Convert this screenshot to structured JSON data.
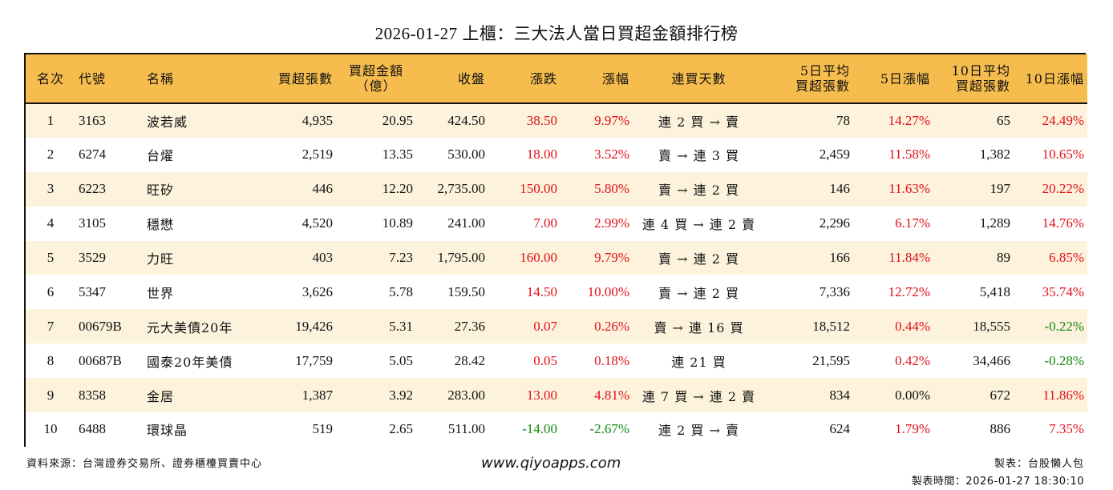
{
  "title": "2026-01-27 上櫃：三大法人當日買超金額排行榜",
  "colors": {
    "header_bg": "#f6bd4e",
    "row_alt_bg": "#fdf2dc",
    "up": "#e0101a",
    "down": "#128a12"
  },
  "columns": [
    {
      "key": "rank",
      "label": "名次"
    },
    {
      "key": "code",
      "label": "代號"
    },
    {
      "key": "name",
      "label": "名稱"
    },
    {
      "key": "net_lots",
      "label": "買超張數"
    },
    {
      "key": "net_amount",
      "label_line1": "買超金額",
      "label_line2": "（億）"
    },
    {
      "key": "close",
      "label": "收盤"
    },
    {
      "key": "change",
      "label": "漲跌"
    },
    {
      "key": "pct",
      "label": "漲幅"
    },
    {
      "key": "streak",
      "label": "連買天數"
    },
    {
      "key": "avg5",
      "label_line1": "5日平均",
      "label_line2": "買超張數"
    },
    {
      "key": "pct5",
      "label": "5日漲幅"
    },
    {
      "key": "avg10",
      "label_line1": "10日平均",
      "label_line2": "買超張數"
    },
    {
      "key": "pct10",
      "label": "10日漲幅"
    }
  ],
  "rows": [
    {
      "rank": "1",
      "code": "3163",
      "name": "波若威",
      "net_lots": "4,935",
      "net_amount": "20.95",
      "close": "424.50",
      "change": "38.50",
      "pct": "9.97%",
      "streak": "連 2 買 → 賣",
      "avg5": "78",
      "pct5": "14.27%",
      "avg10": "65",
      "pct10": "24.49%"
    },
    {
      "rank": "2",
      "code": "6274",
      "name": "台燿",
      "net_lots": "2,519",
      "net_amount": "13.35",
      "close": "530.00",
      "change": "18.00",
      "pct": "3.52%",
      "streak": "賣 → 連 3 買",
      "avg5": "2,459",
      "pct5": "11.58%",
      "avg10": "1,382",
      "pct10": "10.65%"
    },
    {
      "rank": "3",
      "code": "6223",
      "name": "旺矽",
      "net_lots": "446",
      "net_amount": "12.20",
      "close": "2,735.00",
      "change": "150.00",
      "pct": "5.80%",
      "streak": "賣 → 連 2 買",
      "avg5": "146",
      "pct5": "11.63%",
      "avg10": "197",
      "pct10": "20.22%"
    },
    {
      "rank": "4",
      "code": "3105",
      "name": "穩懋",
      "net_lots": "4,520",
      "net_amount": "10.89",
      "close": "241.00",
      "change": "7.00",
      "pct": "2.99%",
      "streak": "連 4 買 → 連 2 賣",
      "avg5": "2,296",
      "pct5": "6.17%",
      "avg10": "1,289",
      "pct10": "14.76%"
    },
    {
      "rank": "5",
      "code": "3529",
      "name": "力旺",
      "net_lots": "403",
      "net_amount": "7.23",
      "close": "1,795.00",
      "change": "160.00",
      "pct": "9.79%",
      "streak": "賣 → 連 2 買",
      "avg5": "166",
      "pct5": "11.84%",
      "avg10": "89",
      "pct10": "6.85%"
    },
    {
      "rank": "6",
      "code": "5347",
      "name": "世界",
      "net_lots": "3,626",
      "net_amount": "5.78",
      "close": "159.50",
      "change": "14.50",
      "pct": "10.00%",
      "streak": "賣 → 連 2 買",
      "avg5": "7,336",
      "pct5": "12.72%",
      "avg10": "5,418",
      "pct10": "35.74%"
    },
    {
      "rank": "7",
      "code": "00679B",
      "name": "元大美債20年",
      "net_lots": "19,426",
      "net_amount": "5.31",
      "close": "27.36",
      "change": "0.07",
      "pct": "0.26%",
      "streak": "賣 → 連 16 買",
      "avg5": "18,512",
      "pct5": "0.44%",
      "avg10": "18,555",
      "pct10": "-0.22%"
    },
    {
      "rank": "8",
      "code": "00687B",
      "name": "國泰20年美債",
      "net_lots": "17,759",
      "net_amount": "5.05",
      "close": "28.42",
      "change": "0.05",
      "pct": "0.18%",
      "streak": "連 21 買",
      "avg5": "21,595",
      "pct5": "0.42%",
      "avg10": "34,466",
      "pct10": "-0.28%"
    },
    {
      "rank": "9",
      "code": "8358",
      "name": "金居",
      "net_lots": "1,387",
      "net_amount": "3.92",
      "close": "283.00",
      "change": "13.00",
      "pct": "4.81%",
      "streak": "連 7 買 → 連 2 賣",
      "avg5": "834",
      "pct5": "0.00%",
      "avg10": "672",
      "pct10": "11.86%"
    },
    {
      "rank": "10",
      "code": "6488",
      "name": "環球晶",
      "net_lots": "519",
      "net_amount": "2.65",
      "close": "511.00",
      "change": "-14.00",
      "pct": "-2.67%",
      "streak": "連 2 買 → 賣",
      "avg5": "624",
      "pct5": "1.79%",
      "avg10": "886",
      "pct10": "7.35%"
    }
  ],
  "footer": {
    "source": "資料來源：台灣證券交易所、證券櫃檯買賣中心",
    "website": "www.qiyoapps.com",
    "maker": "製表：台股懶人包",
    "made_time": "製表時間：2026-01-27 18:30:10"
  }
}
